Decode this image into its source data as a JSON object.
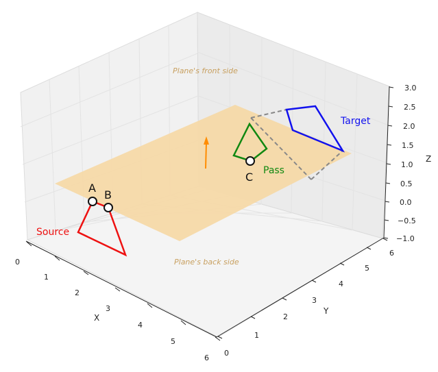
{
  "labels": {
    "front_side": "Plane's front side",
    "back_side": "Plane's back side",
    "source": "Source",
    "target": "Target",
    "pass": "Pass",
    "point_a": "A",
    "point_b": "B",
    "point_c": "C"
  },
  "axes": {
    "x": {
      "label": "X",
      "ticks": [
        "0",
        "1",
        "2",
        "3",
        "4",
        "5",
        "6"
      ]
    },
    "y": {
      "label": "Y",
      "ticks": [
        "0",
        "1",
        "2",
        "3",
        "4",
        "5",
        "6"
      ]
    },
    "z": {
      "label": "Z",
      "ticks": [
        "−1.0",
        "−0.5",
        "0.0",
        "0.5",
        "1.0",
        "1.5",
        "2.0",
        "2.5",
        "3.0"
      ]
    }
  },
  "colors": {
    "source": "#ee1111",
    "target": "#1111ee",
    "pass": "#118811",
    "plane": "#f5d9a8",
    "normal_arrow": "#ff8c00",
    "dashed": "#888888",
    "note": "#c8a060"
  }
}
